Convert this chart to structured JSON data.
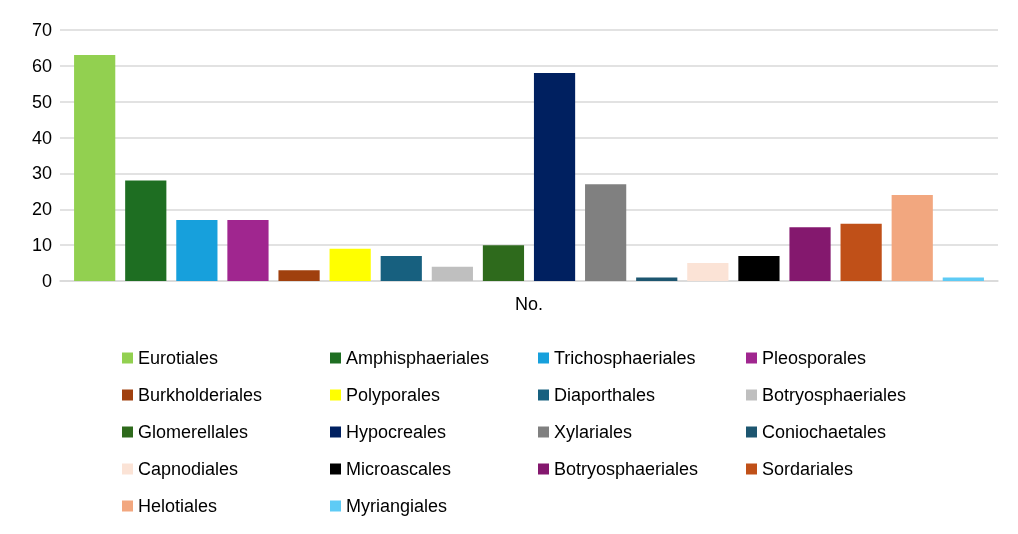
{
  "chart_data": {
    "type": "bar",
    "categories": [
      "No."
    ],
    "ylim": [
      0,
      70
    ],
    "yticks": [
      0,
      10,
      20,
      30,
      40,
      50,
      60,
      70
    ],
    "grid": "y",
    "legend": "bottom",
    "series": [
      {
        "name": "Eurotiales",
        "color": "#92d050",
        "values": [
          63
        ]
      },
      {
        "name": "Amphisphaeriales",
        "color": "#1e6e22",
        "values": [
          28
        ]
      },
      {
        "name": "Trichosphaeriales",
        "color": "#17a0dc",
        "values": [
          17
        ]
      },
      {
        "name": "Pleosporales",
        "color": "#a0268f",
        "values": [
          17
        ]
      },
      {
        "name": "Burkholderiales",
        "color": "#a0400e",
        "values": [
          3
        ]
      },
      {
        "name": "Polyporales",
        "color": "#ffff00",
        "values": [
          9
        ]
      },
      {
        "name": "Diaporthales",
        "color": "#17607f",
        "values": [
          7
        ]
      },
      {
        "name": "Botryosphaeriales",
        "color": "#bfbfbf",
        "values": [
          4
        ]
      },
      {
        "name": "Glomerellales",
        "color": "#2e6a1c",
        "values": [
          10
        ]
      },
      {
        "name": "Hypocreales",
        "color": "#002060",
        "values": [
          58
        ]
      },
      {
        "name": "Xylariales",
        "color": "#808080",
        "values": [
          27
        ]
      },
      {
        "name": "Coniochaetales",
        "color": "#1d5670",
        "values": [
          1
        ]
      },
      {
        "name": "Capnodiales",
        "color": "#fbe3d6",
        "values": [
          5
        ]
      },
      {
        "name": "Microascales",
        "color": "#000000",
        "values": [
          7
        ]
      },
      {
        "name": "Botryosphaeriales",
        "color": "#84186e",
        "values": [
          15
        ]
      },
      {
        "name": "Sordariales",
        "color": "#c05018",
        "values": [
          16
        ]
      },
      {
        "name": "Helotiales",
        "color": "#f2a77f",
        "values": [
          24
        ]
      },
      {
        "name": "Myriangiales",
        "color": "#5ecbf5",
        "values": [
          1
        ]
      }
    ]
  }
}
